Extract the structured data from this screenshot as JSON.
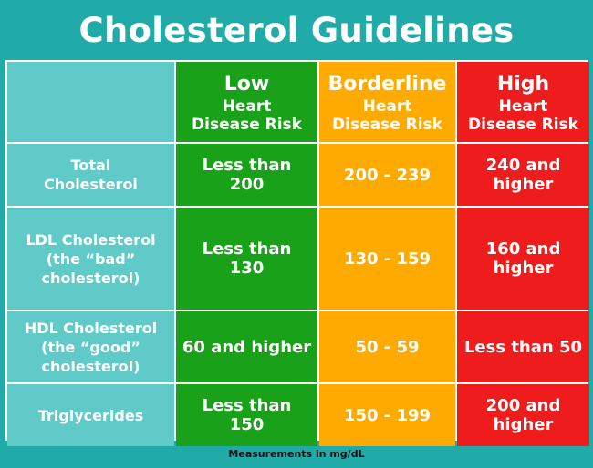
{
  "title": "Cholesterol Guidelines",
  "columns": [
    {
      "label": "Low",
      "sub": "Heart\nDisease Risk"
    },
    {
      "label": "Borderline",
      "sub": "Heart\nDisease Risk"
    },
    {
      "label": "High",
      "sub": "Heart\nDisease Risk"
    }
  ],
  "rows": [
    {
      "label": "Total\nCholesterol",
      "low": "Less than\n200",
      "borderline": "200 - 239",
      "high": "240 and\nhigher"
    },
    {
      "label": "LDL Cholesterol\n(the “bad”\ncholesterol)",
      "low": "Less than\n130",
      "borderline": "130 - 159",
      "high": "160 and\nhigher"
    },
    {
      "label": "HDL Cholesterol\n(the “good”\ncholesterol)",
      "low": "60 and higher",
      "borderline": "50 - 59",
      "high": "Less than 50"
    },
    {
      "label": "Triglycerides",
      "low": "Less than\n150",
      "borderline": "150 - 199",
      "high": "200 and\nhigher"
    }
  ],
  "footer": "Measurements in mg/dL",
  "colors": {
    "background": "#20aaa8",
    "row_header": "#5fcac8",
    "low": "#1aa11a",
    "borderline": "#ffaa00",
    "high": "#ee1c1c"
  }
}
